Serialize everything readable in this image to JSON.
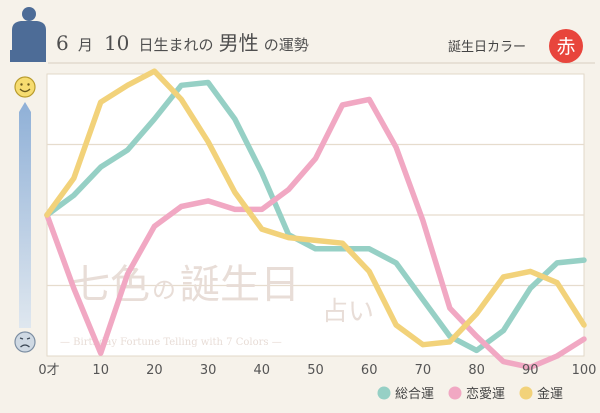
{
  "header": {
    "month": "6",
    "month_unit": "月",
    "day": "10",
    "day_suffix": "日生まれの",
    "subject": "男性",
    "fortune": "の運勢",
    "color_label": "誕生日カラー",
    "color_badge_char": "赤",
    "badge_color": "#e8453c"
  },
  "watermark": {
    "title_part1": "七色",
    "title_part2": "の",
    "title_part3": "誕生日",
    "title_sub": "占い",
    "subtitle": "— Birthday Fortune Telling with 7 Colors —"
  },
  "chart_data": {
    "type": "line",
    "x": [
      0,
      5,
      10,
      15,
      20,
      25,
      30,
      35,
      40,
      45,
      50,
      55,
      60,
      65,
      70,
      75,
      80,
      85,
      90,
      95,
      100
    ],
    "ylim": [
      0,
      100
    ],
    "xlim": [
      0,
      100
    ],
    "ylabel_top": "happy",
    "ylabel_bottom": "sad",
    "x_ticks": [
      {
        "value": 0,
        "label": "0才"
      },
      {
        "value": 10,
        "label": "10"
      },
      {
        "value": 20,
        "label": "20"
      },
      {
        "value": 30,
        "label": "30"
      },
      {
        "value": 40,
        "label": "40"
      },
      {
        "value": 50,
        "label": "50"
      },
      {
        "value": 60,
        "label": "60"
      },
      {
        "value": 70,
        "label": "70"
      },
      {
        "value": 80,
        "label": "80"
      },
      {
        "value": 90,
        "label": "90"
      },
      {
        "value": 100,
        "label": "100"
      }
    ],
    "y_gridlines": [
      0,
      25,
      50,
      75,
      100
    ],
    "series": [
      {
        "name": "総合運",
        "color": "#96d0c5",
        "values": [
          50,
          57,
          67,
          73,
          84,
          96,
          97,
          84,
          65,
          43,
          38,
          38,
          38,
          33,
          20,
          7,
          2,
          9,
          24,
          33,
          34
        ]
      },
      {
        "name": "恋愛運",
        "color": "#f1a8c3",
        "values": [
          50,
          24,
          1,
          29,
          46,
          53,
          55,
          52,
          52,
          59,
          70,
          89,
          91,
          74,
          48,
          17,
          7,
          -2,
          -4,
          0,
          6
        ]
      },
      {
        "name": "金運",
        "color": "#f2d27a",
        "values": [
          50,
          63,
          90,
          96,
          101,
          91,
          76,
          58,
          45,
          42,
          41,
          40,
          30,
          11,
          4,
          5,
          15,
          28,
          30,
          26,
          11
        ]
      }
    ]
  }
}
